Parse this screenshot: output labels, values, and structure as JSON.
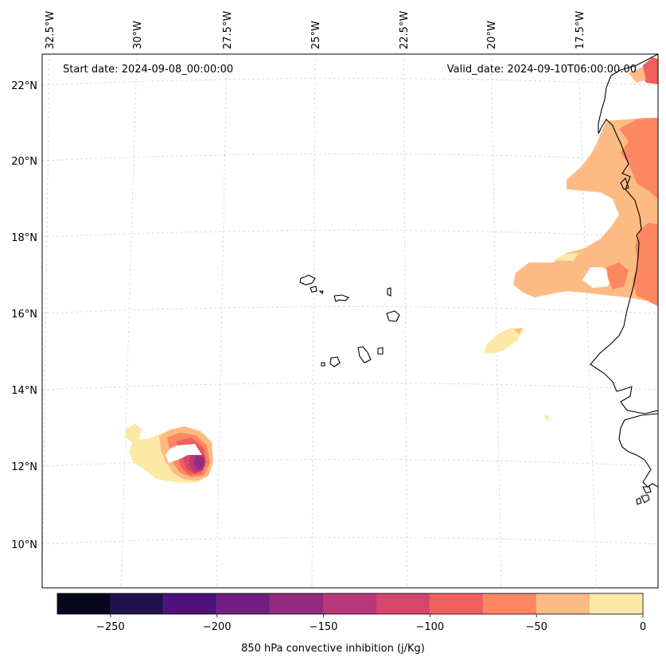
{
  "header": {
    "start_date": "Start date: 2024-09-08_00:00:00",
    "valid_date": "Valid_date: 2024-09-10T06:00:00.00"
  },
  "lon_labels": [
    "32.5°W",
    "30°W",
    "27.5°W",
    "25°W",
    "22.5°W",
    "20°W",
    "17.5°W"
  ],
  "lat_labels": [
    "22°N",
    "20°N",
    "18°N",
    "16°N",
    "14°N",
    "12°N",
    "10°N"
  ],
  "colorbar": {
    "title": "850 hPa convective inhibition (j/Kg)",
    "tick_labels": [
      "−250",
      "−200",
      "−150",
      "−100",
      "−50",
      "0"
    ],
    "ticks": [
      -250,
      -200,
      -150,
      -100,
      -50,
      0
    ],
    "range": [
      -275,
      0
    ],
    "levels": [
      -275,
      -250,
      -225,
      -200,
      -175,
      -150,
      -125,
      -100,
      -75,
      -50,
      -25,
      0
    ],
    "colors": [
      "#07061c",
      "#221150",
      "#4f117b",
      "#721f81",
      "#932b80",
      "#b73779",
      "#d8456c",
      "#f1605d",
      "#fc8761",
      "#fdbb84",
      "#fde9a6"
    ]
  },
  "fill_colors": {
    "very_light": "#fde9a6",
    "light": "#fdbb84",
    "mid": "#fc8761",
    "strong": "#f1605d",
    "deeper": "#d8456c",
    "deep": "#b73779",
    "purple": "#932b80"
  }
}
